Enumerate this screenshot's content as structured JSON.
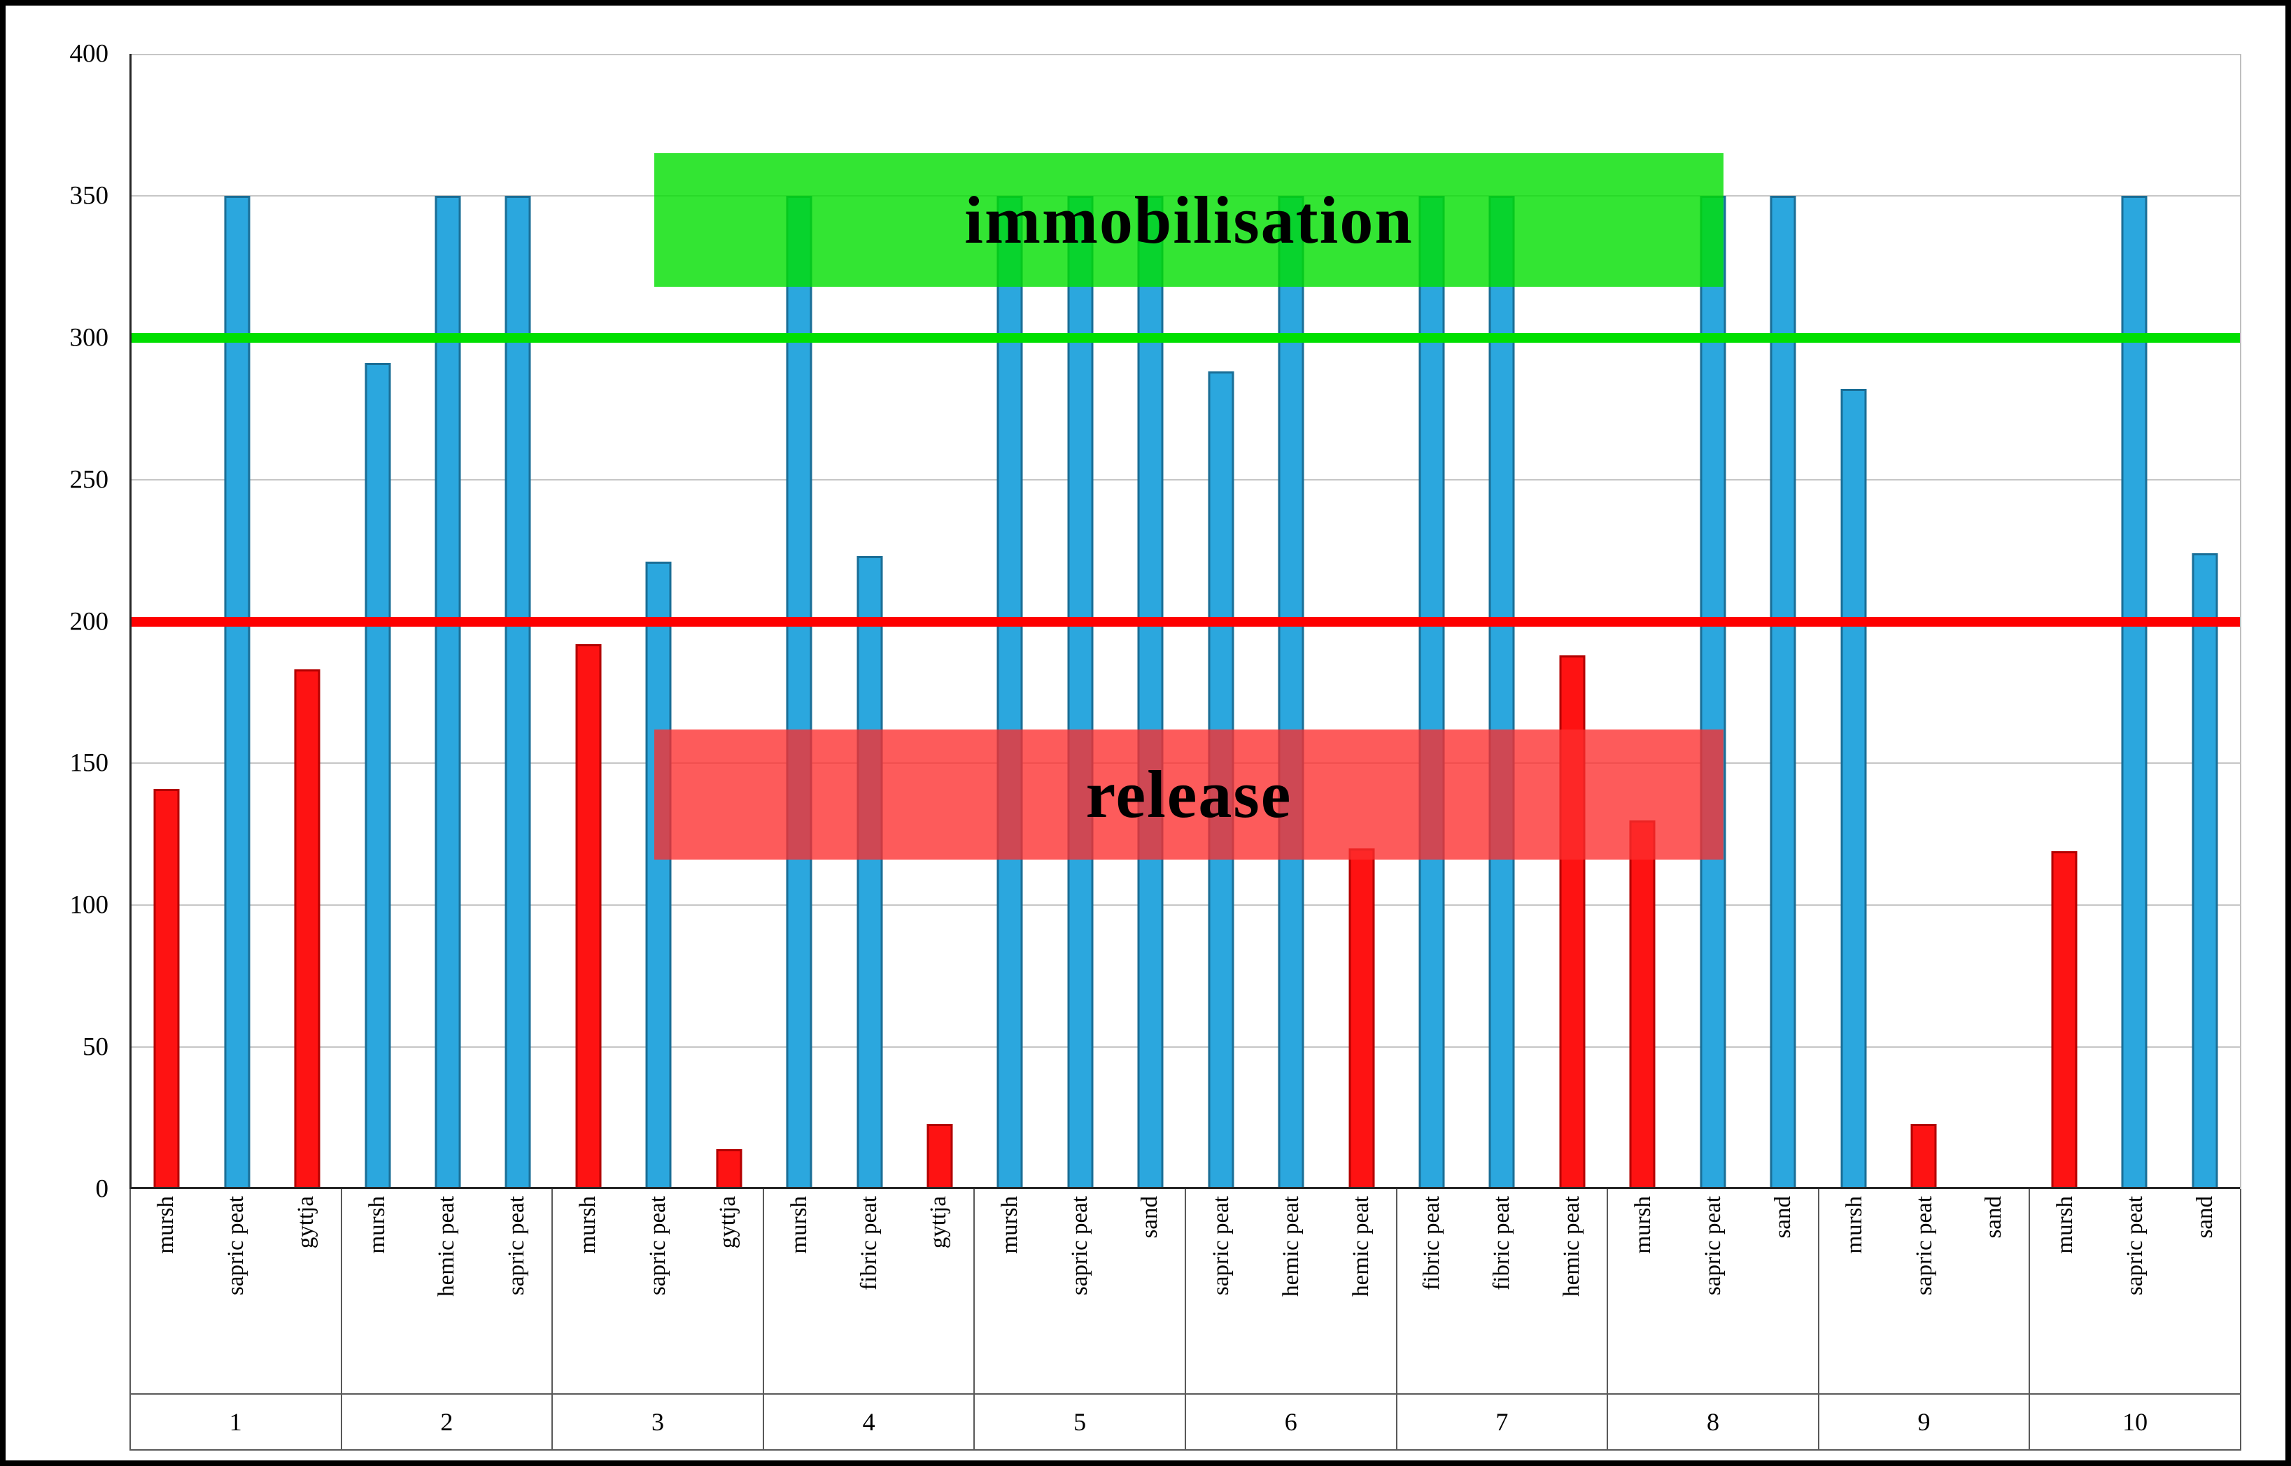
{
  "chart_data": {
    "type": "bar",
    "title": "",
    "y_axis": {
      "min": 0,
      "max": 400,
      "ticks": [
        0,
        50,
        100,
        150,
        200,
        250,
        300,
        350,
        400
      ]
    },
    "grid": true,
    "legend": "none",
    "bar_colors": {
      "blue": "#2BA7DE",
      "red": "#FE1212"
    },
    "groups": [
      {
        "label": "1",
        "bars": [
          {
            "category": "mursh",
            "value": 141,
            "color": "red"
          },
          {
            "category": "sapric peat",
            "value": 350,
            "color": "blue"
          },
          {
            "category": "gyttja",
            "value": 183,
            "color": "red"
          }
        ]
      },
      {
        "label": "2",
        "bars": [
          {
            "category": "mursh",
            "value": 291,
            "color": "blue"
          },
          {
            "category": "hemic peat",
            "value": 350,
            "color": "blue"
          },
          {
            "category": "sapric peat",
            "value": 350,
            "color": "blue"
          }
        ]
      },
      {
        "label": "3",
        "bars": [
          {
            "category": "mursh",
            "value": 192,
            "color": "red"
          },
          {
            "category": "sapric peat",
            "value": 221,
            "color": "blue"
          },
          {
            "category": "gyttja",
            "value": 14,
            "color": "red"
          }
        ]
      },
      {
        "label": "4",
        "bars": [
          {
            "category": "mursh",
            "value": 350,
            "color": "blue"
          },
          {
            "category": "fibric peat",
            "value": 223,
            "color": "blue"
          },
          {
            "category": "gyttja",
            "value": 23,
            "color": "red"
          }
        ]
      },
      {
        "label": "5",
        "bars": [
          {
            "category": "mursh",
            "value": 350,
            "color": "blue"
          },
          {
            "category": "sapric peat",
            "value": 350,
            "color": "blue"
          },
          {
            "category": "sand",
            "value": 350,
            "color": "blue"
          }
        ]
      },
      {
        "label": "6",
        "bars": [
          {
            "category": "sapric peat",
            "value": 288,
            "color": "blue"
          },
          {
            "category": "hemic peat",
            "value": 350,
            "color": "blue"
          },
          {
            "category": "hemic peat",
            "value": 120,
            "color": "red"
          }
        ]
      },
      {
        "label": "7",
        "bars": [
          {
            "category": "fibric peat",
            "value": 350,
            "color": "blue"
          },
          {
            "category": "fibric peat",
            "value": 350,
            "color": "blue"
          },
          {
            "category": "hemic peat",
            "value": 188,
            "color": "red"
          }
        ]
      },
      {
        "label": "8",
        "bars": [
          {
            "category": "mursh",
            "value": 130,
            "color": "red"
          },
          {
            "category": "sapric peat",
            "value": 350,
            "color": "blue"
          },
          {
            "category": "sand",
            "value": 350,
            "color": "blue"
          }
        ]
      },
      {
        "label": "9",
        "bars": [
          {
            "category": "mursh",
            "value": 282,
            "color": "blue"
          },
          {
            "category": "sapric peat",
            "value": 23,
            "color": "red"
          },
          {
            "category": "sand",
            "value": 0,
            "color": "none"
          }
        ]
      },
      {
        "label": "10",
        "bars": [
          {
            "category": "mursh",
            "value": 119,
            "color": "red"
          },
          {
            "category": "sapric peat",
            "value": 350,
            "color": "blue"
          },
          {
            "category": "sand",
            "value": 224,
            "color": "blue"
          }
        ]
      }
    ],
    "reference_lines": [
      {
        "name": "green-300",
        "value": 300,
        "color": "#00DF00"
      },
      {
        "name": "red-200",
        "value": 200,
        "color": "#FE0000"
      }
    ],
    "annotation_boxes": [
      {
        "name": "immobilisation",
        "label": "immobilisation",
        "value_top": 365,
        "value_bottom": 318,
        "x_start_pct": 24.8,
        "x_end_pct": 75.5,
        "fill": "rgba(0,223,0,0.8)"
      },
      {
        "name": "release",
        "label": "release",
        "value_top": 162,
        "value_bottom": 116,
        "x_start_pct": 24.8,
        "x_end_pct": 75.5,
        "fill": "rgba(253,45,45,0.78)"
      }
    ]
  }
}
